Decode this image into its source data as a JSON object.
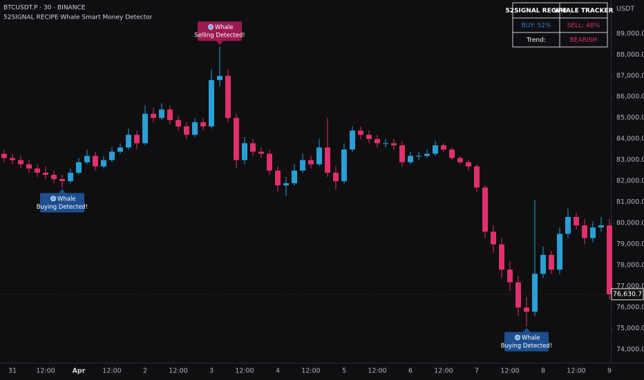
{
  "chart_data": {
    "type": "candlestick",
    "symbol_title": "BTCUSDT.P · 30 · BINANCE",
    "indicator_title": "52SIGNAL RECIPE Whale Smart Money Detector",
    "currency": "USDT",
    "up_color": "#2a9fd6",
    "down_color": "#e0306e",
    "grid": false,
    "categories": [
      null,
      "31",
      null,
      null,
      null,
      "12:00",
      null,
      null,
      null,
      "Apr",
      null,
      null,
      null,
      "12:00",
      null,
      null,
      null,
      "2",
      null,
      null,
      null,
      "12:00",
      null,
      null,
      null,
      "3",
      null,
      null,
      null,
      "12:00",
      null,
      null,
      null,
      "4",
      null,
      null,
      null,
      "12:00",
      null,
      null,
      null,
      "5",
      null,
      null,
      null,
      "12:00",
      null,
      null,
      null,
      "6",
      null,
      null,
      null,
      "12:00",
      null,
      null,
      null,
      "7",
      null,
      null,
      null,
      "12:00",
      null,
      null,
      null,
      "8",
      null,
      null,
      null,
      "12:00",
      null,
      null,
      null,
      "9"
    ],
    "open": [
      83300,
      83100,
      83000,
      82800,
      82600,
      82400,
      82300,
      82100,
      82000,
      82400,
      82900,
      83200,
      82700,
      83000,
      83400,
      83600,
      84200,
      83800,
      85200,
      85000,
      85400,
      84900,
      84600,
      84200,
      84800,
      84600,
      86800,
      87000,
      85000,
      83000,
      83800,
      83400,
      83300,
      82500,
      81800,
      81900,
      82500,
      83000,
      82800,
      83600,
      82400,
      82000,
      83500,
      84400,
      84200,
      84000,
      83800,
      83800,
      83700,
      82900,
      83200,
      83200,
      83300,
      83700,
      83500,
      83100,
      82900,
      82700,
      81700,
      79600,
      79000,
      77800,
      77200,
      76000,
      75800,
      77600,
      78500,
      77800,
      79500,
      80300,
      79900,
      79300,
      79800,
      79900
    ],
    "high": [
      83500,
      83300,
      83200,
      83000,
      82800,
      82700,
      82500,
      82300,
      82600,
      83100,
      83500,
      83400,
      83200,
      83600,
      83800,
      84500,
      84400,
      85600,
      85500,
      85700,
      85600,
      85100,
      84800,
      85000,
      85000,
      87300,
      88400,
      87300,
      85200,
      84100,
      84000,
      83600,
      83500,
      82700,
      82200,
      82800,
      83300,
      83200,
      84000,
      85000,
      82700,
      83800,
      84600,
      84600,
      84400,
      84200,
      84000,
      84000,
      83900,
      83400,
      83400,
      83500,
      83900,
      83800,
      83600,
      83200,
      83000,
      82800,
      81800,
      79900,
      79300,
      78200,
      77500,
      76500,
      81100,
      78900,
      78700,
      79800,
      80700,
      80500,
      80200,
      80100,
      80300,
      80200
    ],
    "low": [
      82900,
      82800,
      82600,
      82400,
      82200,
      82100,
      81900,
      81700,
      81900,
      82300,
      82800,
      82500,
      82600,
      82900,
      83300,
      83500,
      83500,
      83700,
      84800,
      84900,
      84700,
      84400,
      84000,
      84100,
      84400,
      84500,
      86500,
      84800,
      82600,
      82800,
      83200,
      83100,
      82300,
      81500,
      81300,
      81800,
      82400,
      82600,
      82700,
      82200,
      81600,
      81900,
      83400,
      84000,
      83800,
      83600,
      83600,
      83500,
      82700,
      82800,
      83000,
      83100,
      83200,
      83400,
      83000,
      82800,
      82500,
      81500,
      79300,
      78600,
      77400,
      76800,
      75600,
      75100,
      75600,
      77400,
      77600,
      77600,
      79300,
      79700,
      79000,
      79100,
      79600,
      76400
    ],
    "close": [
      83100,
      83000,
      82800,
      82600,
      82400,
      82300,
      82100,
      82000,
      82400,
      82900,
      83200,
      82700,
      83000,
      83400,
      83600,
      84200,
      83800,
      85200,
      85000,
      85400,
      84900,
      84600,
      84200,
      84800,
      84600,
      86800,
      87000,
      85000,
      83000,
      83800,
      83400,
      83300,
      82500,
      81800,
      81900,
      82500,
      83000,
      82800,
      83600,
      82400,
      82000,
      83500,
      84400,
      84200,
      84000,
      83800,
      83800,
      83700,
      82900,
      83200,
      83200,
      83300,
      83700,
      83500,
      83100,
      82900,
      82700,
      81700,
      79600,
      79000,
      77800,
      77200,
      76000,
      75800,
      77600,
      78500,
      77800,
      79500,
      80300,
      79900,
      79300,
      79800,
      79900,
      76630.7
    ],
    "last_price": {
      "value": 76630.7,
      "label": "76,630.7"
    },
    "ylim": [
      73380,
      90600
    ],
    "yticks": [
      {
        "value": 74000,
        "label": "74,000.0"
      },
      {
        "value": 75000,
        "label": "75,000.0"
      },
      {
        "value": 76000,
        "label": "76,000.0"
      },
      {
        "value": 77000,
        "label": "77,000.0"
      },
      {
        "value": 78000,
        "label": "78,000.0"
      },
      {
        "value": 79000,
        "label": "79,000.0"
      },
      {
        "value": 80000,
        "label": "80,000.0"
      },
      {
        "value": 81000,
        "label": "81,000.0"
      },
      {
        "value": 82000,
        "label": "82,000.0"
      },
      {
        "value": 83000,
        "label": "83,000.0"
      },
      {
        "value": 84000,
        "label": "84,000.0"
      },
      {
        "value": 85000,
        "label": "85,000.0"
      },
      {
        "value": 86000,
        "label": "86,000.0"
      },
      {
        "value": 87000,
        "label": "87,000.0"
      },
      {
        "value": 88000,
        "label": "88,000.0"
      },
      {
        "value": 89000,
        "label": "89,000.0"
      }
    ],
    "annotations": [
      {
        "kind": "buy",
        "lines": [
          "Whale",
          "Buying Detected!"
        ]
      },
      {
        "kind": "sell",
        "lines": [
          "Whale",
          "Selling Detected!"
        ]
      },
      {
        "kind": "buy",
        "lines": [
          "Whale",
          "Buying Detected!"
        ]
      }
    ],
    "tracker_table": {
      "header": [
        "52SIGNAL RECIPE",
        "WHALE TRACKER"
      ],
      "rows": [
        [
          "BUY: 52%",
          "SELL: 48%"
        ],
        [
          "Trend:",
          "BEARISH"
        ]
      ]
    }
  }
}
